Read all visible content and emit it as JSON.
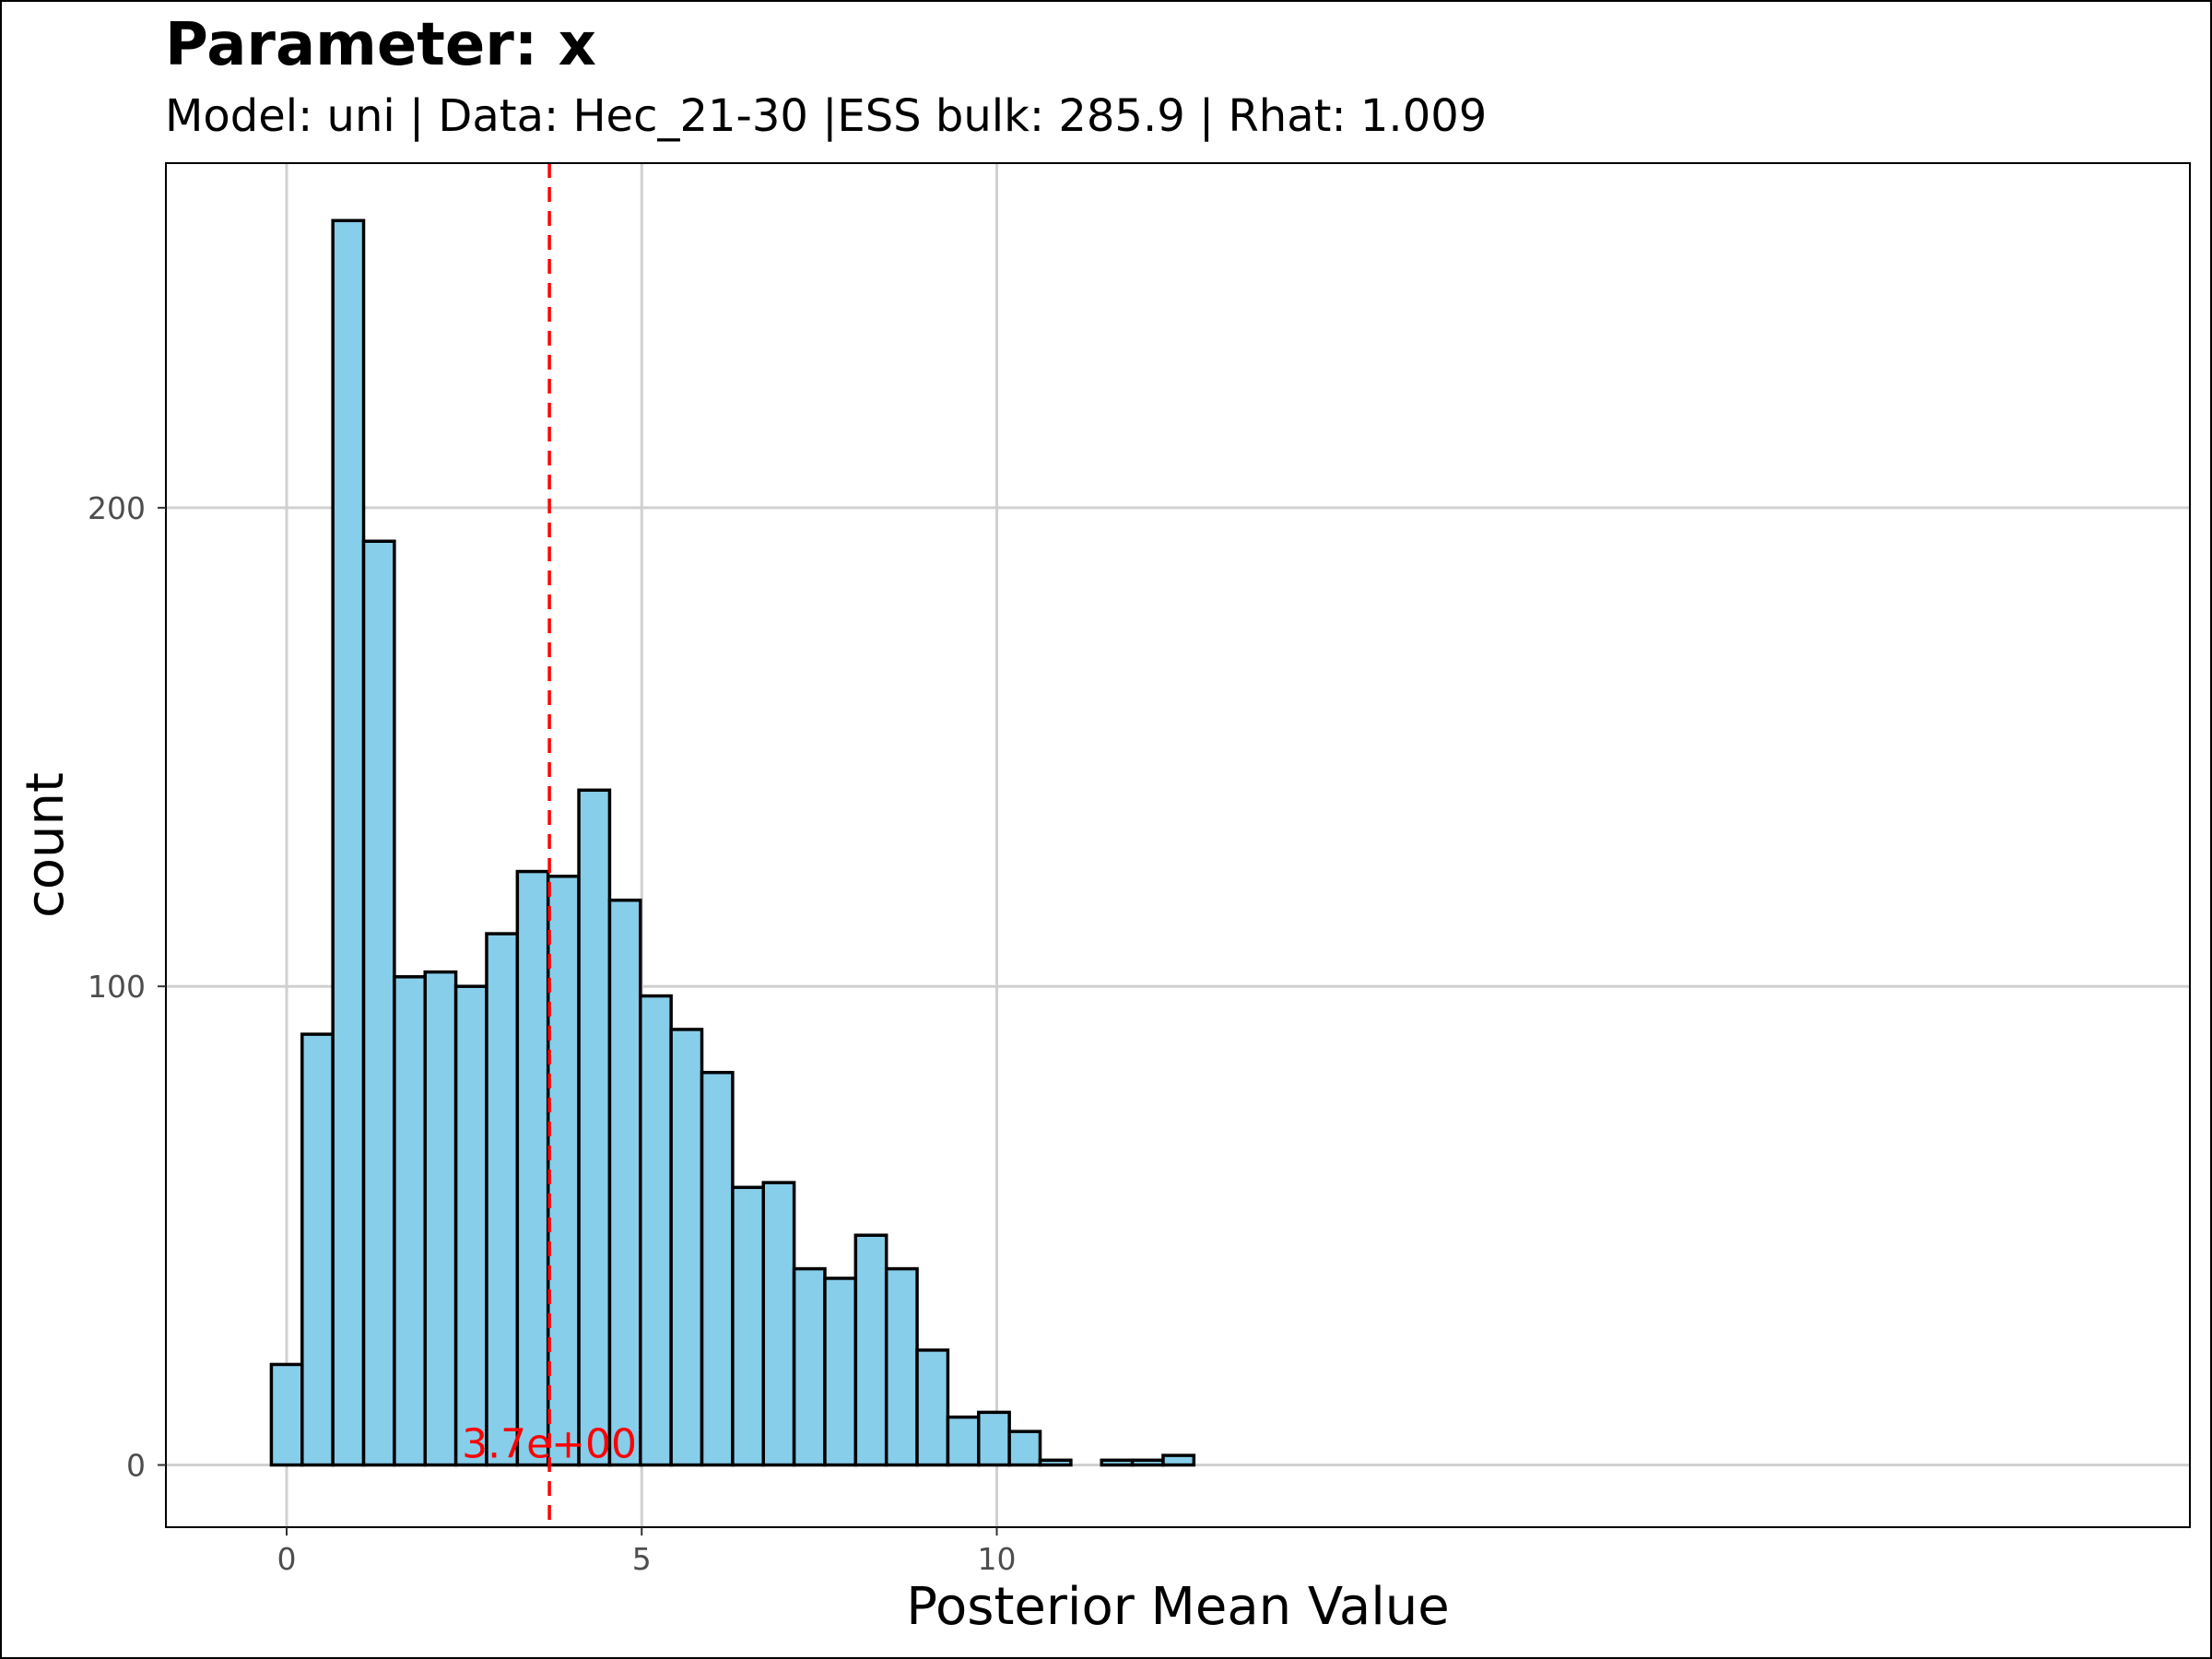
{
  "chart_data": {
    "type": "bar",
    "title": "Parameter: x",
    "subtitle": "Model: uni | Data: Hec_21-30 |ESS bulk: 285.9 | Rhat: 1.009",
    "xlabel": "Posterior Mean Value",
    "ylabel": "count",
    "xlim": [
      -1.7,
      26.8
    ],
    "ylim": [
      -13,
      272
    ],
    "x_ticks": [
      {
        "value": 0,
        "label": "0"
      },
      {
        "value": 5,
        "label": "5"
      },
      {
        "value": 10,
        "label": "10"
      }
    ],
    "y_ticks": [
      {
        "value": 0,
        "label": "0"
      },
      {
        "value": 100,
        "label": "100"
      },
      {
        "value": 200,
        "label": "200"
      }
    ],
    "grid": true,
    "bin_start": -0.215,
    "bin_width": 0.433,
    "counts": [
      21,
      90,
      260,
      193,
      102,
      103,
      100,
      111,
      124,
      123,
      141,
      118,
      98,
      91,
      82,
      58,
      59,
      41,
      39,
      48,
      41,
      24,
      10,
      11,
      7,
      1,
      0,
      1,
      1,
      2
    ],
    "fill_color": "#87CEEB",
    "edge_color": "#000000",
    "reference_line": {
      "value": 3.7,
      "label": "3.7e+00",
      "color": "#FF0000",
      "style": "dashed"
    }
  }
}
